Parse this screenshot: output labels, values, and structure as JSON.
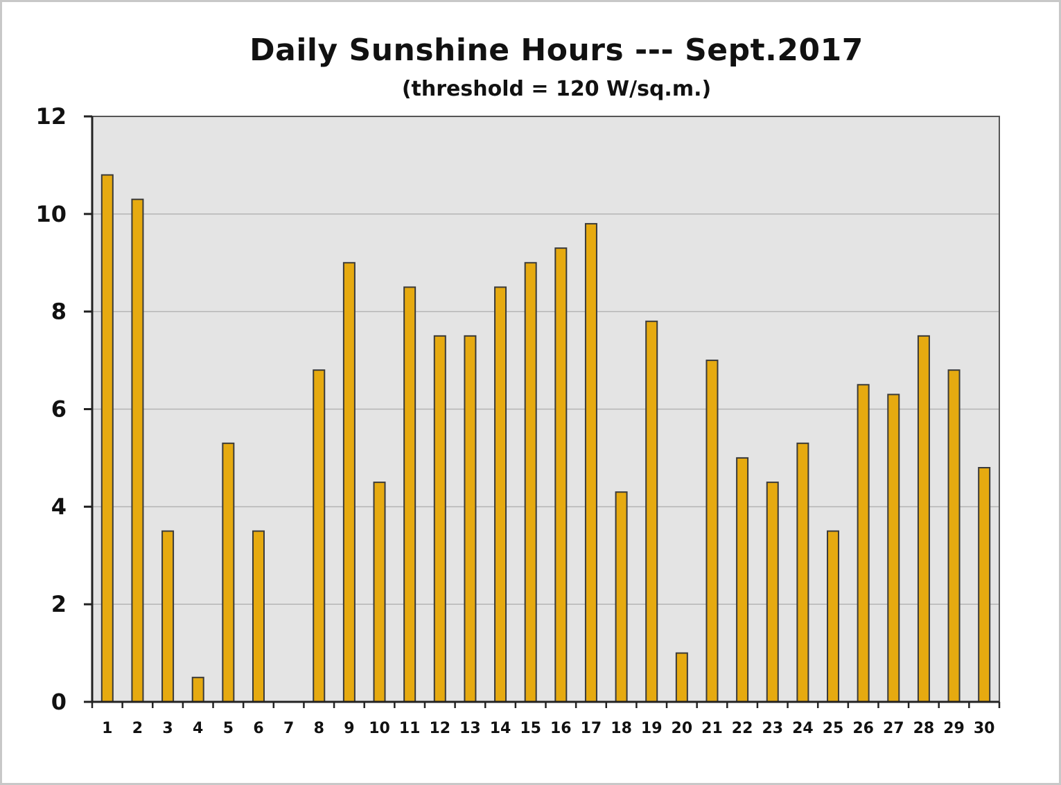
{
  "chart_data": {
    "type": "bar",
    "title": "Daily Sunshine Hours --- Sept.2017",
    "subtitle": "(threshold = 120 W/sq.m.)",
    "xlabel": "",
    "ylabel": "",
    "ylim": [
      0,
      12
    ],
    "yticks": [
      0,
      2,
      4,
      6,
      8,
      10,
      12
    ],
    "grid": true,
    "legend": "none",
    "categories": [
      "1",
      "2",
      "3",
      "4",
      "5",
      "6",
      "7",
      "8",
      "9",
      "10",
      "11",
      "12",
      "13",
      "14",
      "15",
      "16",
      "17",
      "18",
      "19",
      "20",
      "21",
      "22",
      "23",
      "24",
      "25",
      "26",
      "27",
      "28",
      "29",
      "30"
    ],
    "values": [
      10.8,
      10.3,
      3.5,
      0.5,
      5.3,
      3.5,
      0,
      6.8,
      9.0,
      4.5,
      8.5,
      7.5,
      7.5,
      8.5,
      9.0,
      9.3,
      9.8,
      4.3,
      7.8,
      1.0,
      7.0,
      5.0,
      4.5,
      5.3,
      3.5,
      6.5,
      6.3,
      7.5,
      6.8,
      4.8
    ],
    "colors": {
      "bar_fill": "#e6aa10",
      "bar_stroke": "#3a3a3a",
      "plot_background": "#e4e4e4",
      "gridline": "#b4b4b4",
      "axis": "#222222"
    }
  }
}
